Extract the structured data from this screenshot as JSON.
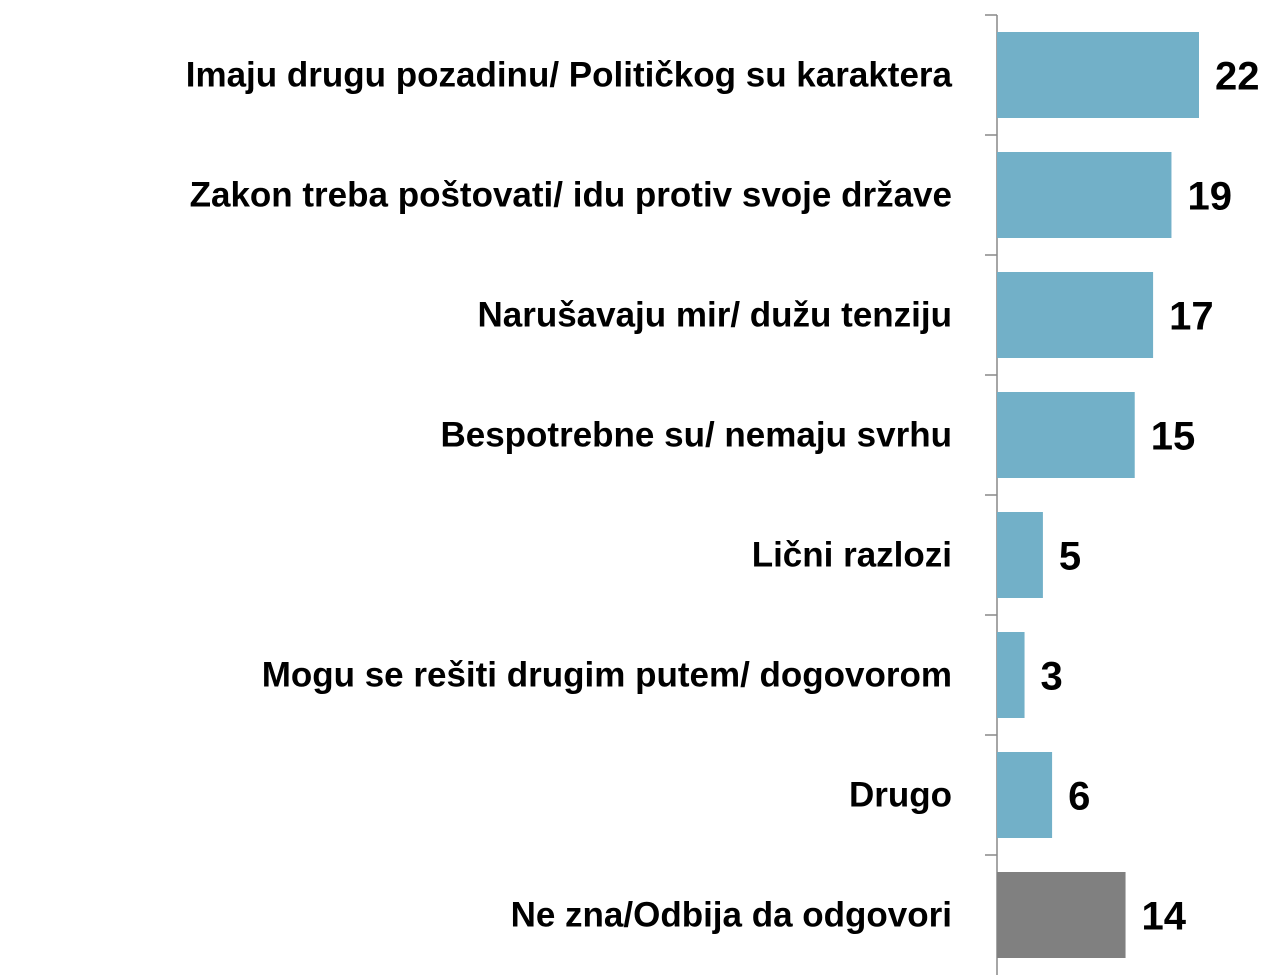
{
  "chart_data": {
    "type": "bar",
    "orientation": "horizontal",
    "categories": [
      "Imaju drugu pozadinu/ Političkog su karaktera",
      "Zakon treba poštovati/ idu protiv svoje države",
      "Narušavaju mir/ dužu tenziju",
      "Bespotrebne su/ nemaju svrhu",
      "Lični razlozi",
      "Mogu se rešiti drugim putem/ dogovorom",
      "Drugo",
      "Ne zna/Odbija da odgovori"
    ],
    "values": [
      22,
      19,
      17,
      15,
      5,
      3,
      6,
      14
    ],
    "colors": [
      "#72b0c8",
      "#72b0c8",
      "#72b0c8",
      "#72b0c8",
      "#72b0c8",
      "#72b0c8",
      "#72b0c8",
      "#808080"
    ]
  }
}
